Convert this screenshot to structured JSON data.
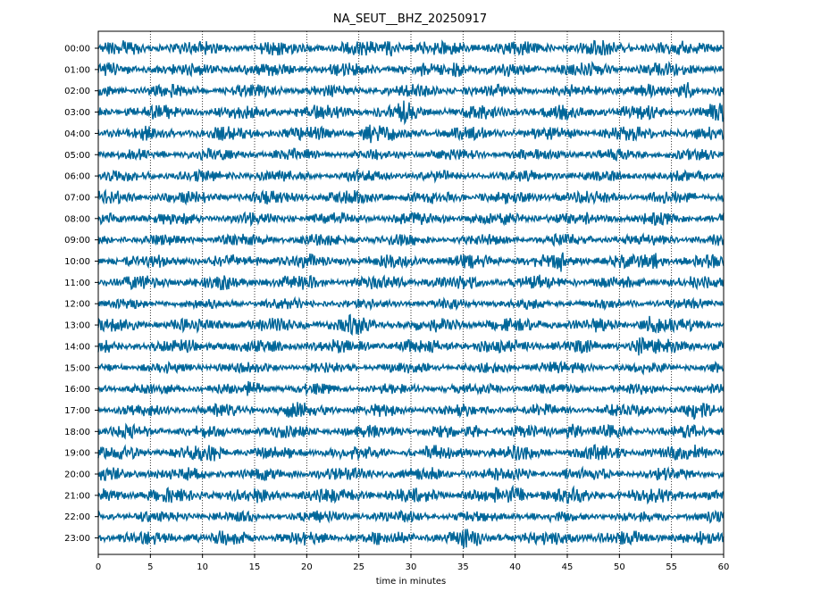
{
  "chart_data": {
    "type": "line",
    "title": "NA_SEUT__BHZ_20250917",
    "xlabel": "time in minutes",
    "ylabel": "",
    "xlim": [
      0,
      60
    ],
    "x_ticks": [
      0,
      5,
      10,
      15,
      20,
      25,
      30,
      35,
      40,
      45,
      50,
      55,
      60
    ],
    "grid": "vertical dotted lines every 5 minutes",
    "trace_color": "#006699",
    "rows": [
      "00:00",
      "01:00",
      "02:00",
      "03:00",
      "04:00",
      "05:00",
      "06:00",
      "07:00",
      "08:00",
      "09:00",
      "10:00",
      "11:00",
      "12:00",
      "13:00",
      "14:00",
      "15:00",
      "16:00",
      "17:00",
      "18:00",
      "19:00",
      "20:00",
      "21:00",
      "22:00",
      "23:00"
    ],
    "events": [
      {
        "row": "00:00",
        "minute": 28
      },
      {
        "row": "01:00",
        "minute": 34.5
      },
      {
        "row": "02:00",
        "minute": 56.5
      },
      {
        "row": "03:00",
        "minute": 29.5
      },
      {
        "row": "03:00",
        "minute": 59.5
      },
      {
        "row": "04:00",
        "minute": 26
      },
      {
        "row": "10:00",
        "minute": 44.5
      },
      {
        "row": "10:00",
        "minute": 53.5
      },
      {
        "row": "13:00",
        "minute": 24.5
      },
      {
        "row": "13:00",
        "minute": 53
      },
      {
        "row": "14:00",
        "minute": 52
      },
      {
        "row": "15:00",
        "minute": 43
      },
      {
        "row": "16:00",
        "minute": 15
      },
      {
        "row": "17:00",
        "minute": 19
      },
      {
        "row": "17:00",
        "minute": 57
      },
      {
        "row": "18:00",
        "minute": 36.5
      },
      {
        "row": "18:00",
        "minute": 45.5
      },
      {
        "row": "19:00",
        "minute": 11
      },
      {
        "row": "19:00",
        "minute": 57.5
      },
      {
        "row": "21:00",
        "minute": 40
      },
      {
        "row": "23:00",
        "minute": 35.5
      }
    ]
  }
}
